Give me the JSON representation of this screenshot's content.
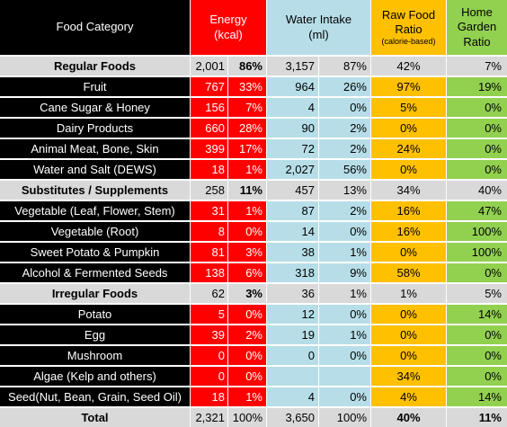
{
  "headers": {
    "food_category": "Food Category",
    "energy": [
      "Energy",
      "(kcal)"
    ],
    "water": [
      "Water Intake",
      "(ml)"
    ],
    "raw": [
      "Raw Food",
      "Ratio",
      "(calorie-based)"
    ],
    "home": [
      "Home",
      "Garden",
      "Ratio"
    ]
  },
  "colors": {
    "black": "#000000",
    "red": "#ff0000",
    "light_blue": "#b7dee8",
    "orange": "#ffc000",
    "green": "#92d050",
    "gray": "#d9d9d9"
  },
  "rows": [
    {
      "type": "group",
      "name": "Regular Foods",
      "energy": "2,001",
      "energy_pct": "86%",
      "water": "3,157",
      "water_pct": "87%",
      "raw": "42%",
      "home": "7%"
    },
    {
      "type": "item",
      "name": "Fruit",
      "energy": "767",
      "energy_pct": "33%",
      "water": "964",
      "water_pct": "26%",
      "raw": "97%",
      "home": "19%"
    },
    {
      "type": "item",
      "name": "Cane Sugar & Honey",
      "energy": "156",
      "energy_pct": "7%",
      "water": "4",
      "water_pct": "0%",
      "raw": "5%",
      "home": "0%"
    },
    {
      "type": "item",
      "name": "Dairy Products",
      "energy": "660",
      "energy_pct": "28%",
      "water": "90",
      "water_pct": "2%",
      "raw": "0%",
      "home": "0%"
    },
    {
      "type": "item",
      "name": "Animal Meat, Bone, Skin",
      "energy": "399",
      "energy_pct": "17%",
      "water": "72",
      "water_pct": "2%",
      "raw": "24%",
      "home": "0%"
    },
    {
      "type": "item",
      "name": "Water and Salt (DEWS)",
      "energy": "18",
      "energy_pct": "1%",
      "water": "2,027",
      "water_pct": "56%",
      "raw": "0%",
      "home": "0%"
    },
    {
      "type": "group",
      "name": "Substitutes / Supplements",
      "energy": "258",
      "energy_pct": "11%",
      "water": "457",
      "water_pct": "13%",
      "raw": "34%",
      "home": "40%"
    },
    {
      "type": "item",
      "name": "Vegetable (Leaf, Flower, Stem)",
      "energy": "31",
      "energy_pct": "1%",
      "water": "87",
      "water_pct": "2%",
      "raw": "16%",
      "home": "47%"
    },
    {
      "type": "item",
      "name": "Vegetable (Root)",
      "energy": "8",
      "energy_pct": "0%",
      "water": "14",
      "water_pct": "0%",
      "raw": "16%",
      "home": "100%"
    },
    {
      "type": "item",
      "name": "Sweet Potato & Pumpkin",
      "energy": "81",
      "energy_pct": "3%",
      "water": "38",
      "water_pct": "1%",
      "raw": "0%",
      "home": "100%"
    },
    {
      "type": "item",
      "name": "Alcohol & Fermented Seeds",
      "energy": "138",
      "energy_pct": "6%",
      "water": "318",
      "water_pct": "9%",
      "raw": "58%",
      "home": "0%"
    },
    {
      "type": "group",
      "name": "Irregular Foods",
      "energy": "62",
      "energy_pct": "3%",
      "water": "36",
      "water_pct": "1%",
      "raw": "1%",
      "home": "5%"
    },
    {
      "type": "item",
      "name": "Potato",
      "energy": "5",
      "energy_pct": "0%",
      "water": "12",
      "water_pct": "0%",
      "raw": "0%",
      "home": "14%"
    },
    {
      "type": "item",
      "name": "Egg",
      "energy": "39",
      "energy_pct": "2%",
      "water": "19",
      "water_pct": "1%",
      "raw": "0%",
      "home": "0%"
    },
    {
      "type": "item",
      "name": "Mushroom",
      "energy": "0",
      "energy_pct": "0%",
      "water": "0",
      "water_pct": "0%",
      "raw": "0%",
      "home": "0%"
    },
    {
      "type": "item",
      "name": "Algae (Kelp and others)",
      "energy": "0",
      "energy_pct": "0%",
      "water": "",
      "water_pct": "",
      "raw": "34%",
      "home": "0%"
    },
    {
      "type": "item",
      "name": "Seed(Nut, Bean, Grain, Seed Oil)",
      "energy": "18",
      "energy_pct": "1%",
      "water": "4",
      "water_pct": "0%",
      "raw": "4%",
      "home": "14%"
    },
    {
      "type": "total",
      "name": "Total",
      "energy": "2,321",
      "energy_pct": "100%",
      "water": "3,650",
      "water_pct": "100%",
      "raw": "40%",
      "home": "11%"
    }
  ]
}
